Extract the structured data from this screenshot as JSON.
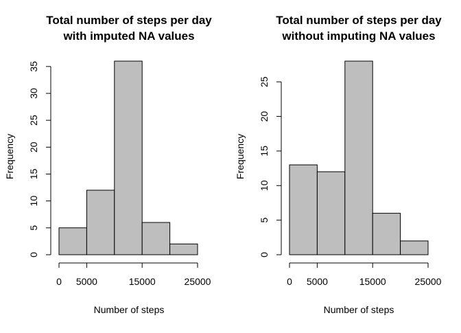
{
  "chart_data": [
    {
      "type": "bar",
      "title_line1": "Total number of steps per day",
      "title_line2": "with imputed NA values",
      "xlabel": "Number of steps",
      "ylabel": "Frequency",
      "bin_edges": [
        0,
        5000,
        10000,
        15000,
        20000,
        25000
      ],
      "values": [
        5,
        12,
        36,
        6,
        2
      ],
      "xticks": [
        0,
        5000,
        15000,
        25000
      ],
      "xlim": [
        0,
        25000
      ],
      "yticks": [
        0,
        5,
        10,
        15,
        20,
        25,
        30,
        35
      ],
      "ylim": [
        0,
        36
      ],
      "bar_color": "#bebebe",
      "grid": false
    },
    {
      "type": "bar",
      "title_line1": "Total number of steps per day",
      "title_line2": "without imputing NA values",
      "xlabel": "Number of steps",
      "ylabel": "Frequency",
      "bin_edges": [
        0,
        5000,
        10000,
        15000,
        20000,
        25000
      ],
      "values": [
        13,
        12,
        28,
        6,
        2
      ],
      "xticks": [
        0,
        5000,
        15000,
        25000
      ],
      "xlim": [
        0,
        25000
      ],
      "yticks": [
        0,
        5,
        10,
        15,
        20,
        25
      ],
      "ylim": [
        0,
        28
      ],
      "bar_color": "#bebebe",
      "grid": false
    }
  ]
}
